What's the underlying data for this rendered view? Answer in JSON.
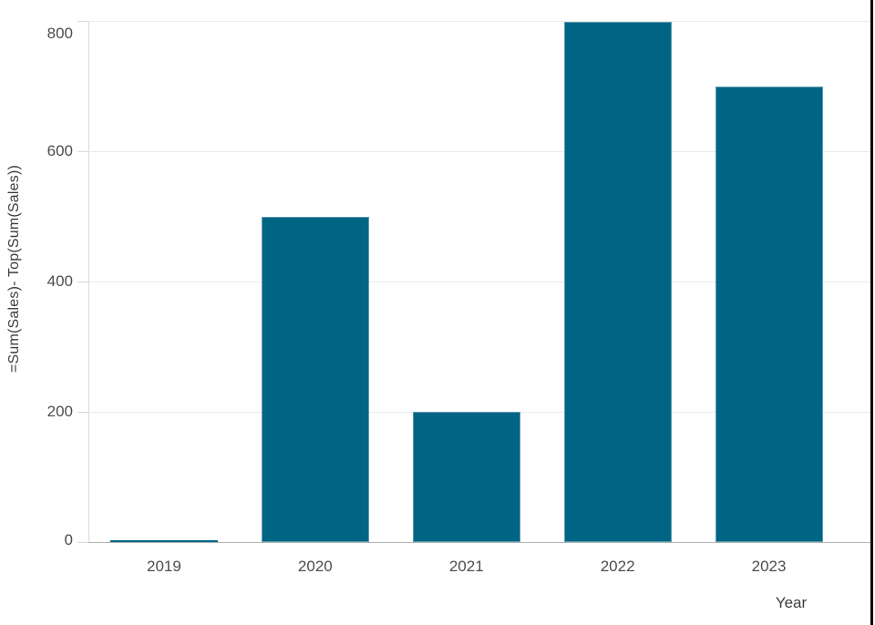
{
  "chart_data": {
    "type": "bar",
    "title": "",
    "categories": [
      "2019",
      "2020",
      "2021",
      "2022",
      "2023"
    ],
    "values": [
      2,
      500,
      200,
      800,
      700
    ],
    "xlabel": "Year",
    "ylabel": "=Sum(Sales)- Top(Sum(Sales))",
    "yticks": [
      0,
      200,
      400,
      600,
      800
    ],
    "ylim": [
      0,
      800
    ],
    "grid": true,
    "legend": false,
    "bar_color": "#006485",
    "bar_edge_color": "#5c9cb0",
    "grid_color": "#e9e9e9",
    "baseline_color": "#b5b5b5",
    "axis_color": "#d9d9d9",
    "tick_text_color": "#4d4d4d",
    "title_text_color": "#3d3d3d",
    "right_border_color": "#000000"
  }
}
